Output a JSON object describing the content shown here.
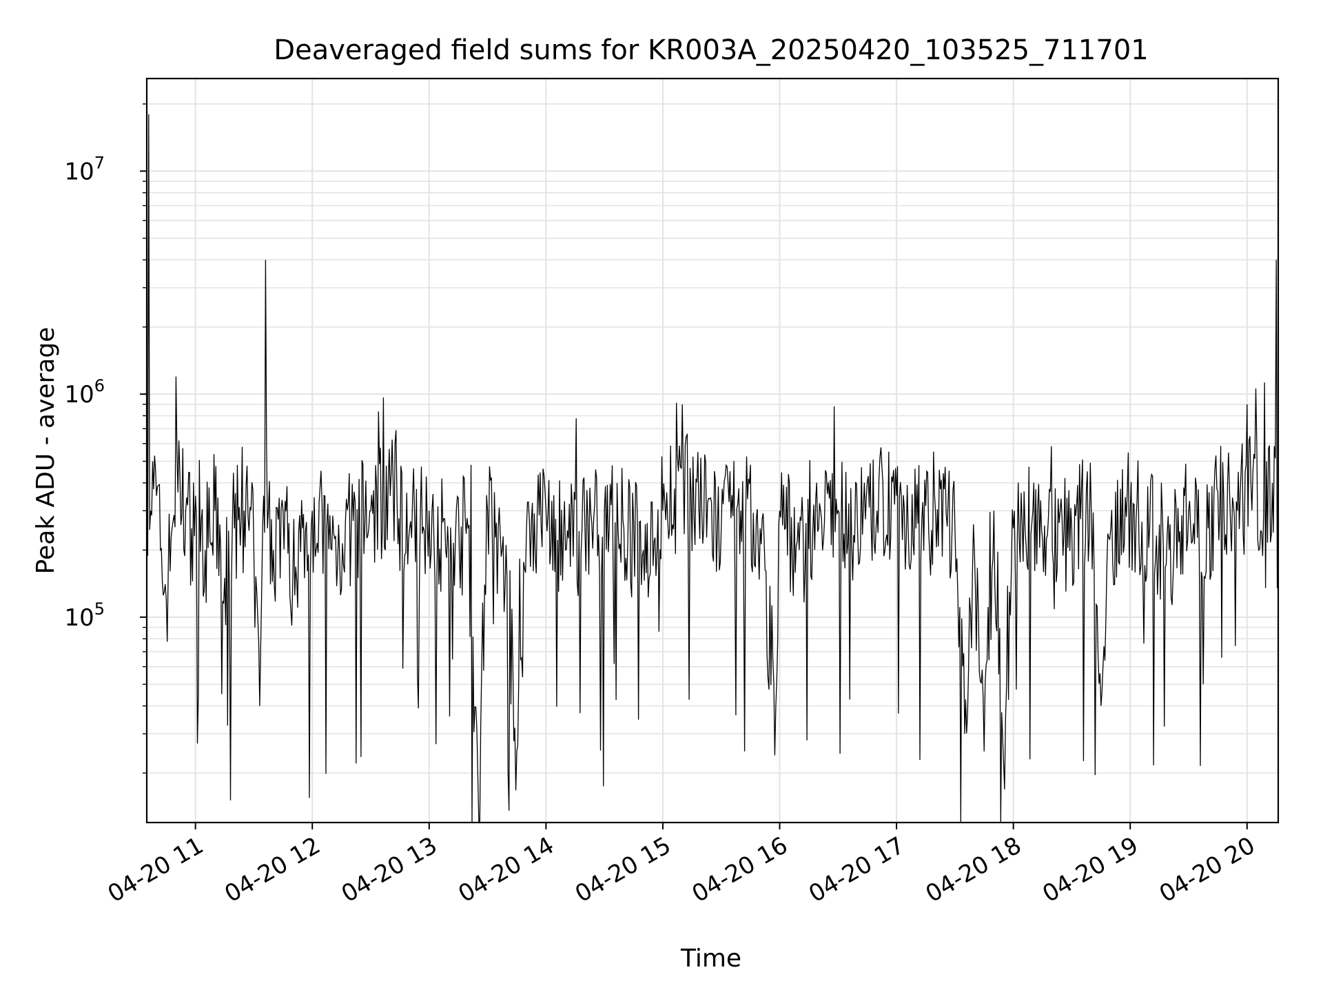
{
  "chart_data": {
    "type": "line",
    "title": "Deaveraged field sums for KR003A_20250420_103525_711701",
    "xlabel": "Time",
    "ylabel": "Peak ADU - average",
    "yscale": "log",
    "grid": true,
    "x_ticks": [
      "04-20 11",
      "04-20 12",
      "04-20 13",
      "04-20 14",
      "04-20 15",
      "04-20 16",
      "04-20 17",
      "04-20 18",
      "04-20 19",
      "04-20 20"
    ],
    "y_ticks": [
      {
        "base": "10",
        "exp": "5",
        "value": 100000
      },
      {
        "base": "10",
        "exp": "6",
        "value": 1000000
      },
      {
        "base": "10",
        "exp": "7",
        "value": 10000000
      }
    ],
    "ylim": [
      12000,
      26000000
    ],
    "xlim": [
      "2025-04-20 10:35",
      "2025-04-20 20:16"
    ],
    "line_color": "#000000",
    "series": [
      {
        "x": [
          "2025-04-20 10:35",
          "2025-04-20 10:36",
          "2025-04-20 10:37",
          "2025-04-20 10:38",
          "2025-04-20 10:40",
          "2025-04-20 10:42",
          "2025-04-20 10:45",
          "2025-04-20 10:48",
          "2025-04-20 10:50",
          "2025-04-20 10:52",
          "2025-04-20 10:55",
          "2025-04-20 10:58",
          "2025-04-20 11:00",
          "2025-04-20 11:05",
          "2025-04-20 11:10",
          "2025-04-20 11:15",
          "2025-04-20 11:20",
          "2025-04-20 11:25",
          "2025-04-20 11:30",
          "2025-04-20 11:33",
          "2025-04-20 11:35",
          "2025-04-20 11:36",
          "2025-04-20 11:37",
          "2025-04-20 11:40",
          "2025-04-20 11:45",
          "2025-04-20 11:50",
          "2025-04-20 11:55",
          "2025-04-20 12:00",
          "2025-04-20 12:10",
          "2025-04-20 12:20",
          "2025-04-20 12:30",
          "2025-04-20 12:40",
          "2025-04-20 12:50",
          "2025-04-20 13:00",
          "2025-04-20 13:10",
          "2025-04-20 13:20",
          "2025-04-20 13:25",
          "2025-04-20 13:30",
          "2025-04-20 13:40",
          "2025-04-20 13:45",
          "2025-04-20 13:50",
          "2025-04-20 14:00",
          "2025-04-20 14:10",
          "2025-04-20 14:20",
          "2025-04-20 14:30",
          "2025-04-20 14:40",
          "2025-04-20 14:50",
          "2025-04-20 15:00",
          "2025-04-20 15:10",
          "2025-04-20 15:20",
          "2025-04-20 15:30",
          "2025-04-20 15:40",
          "2025-04-20 15:50",
          "2025-04-20 15:58",
          "2025-04-20 16:00",
          "2025-04-20 16:10",
          "2025-04-20 16:20",
          "2025-04-20 16:30",
          "2025-04-20 16:40",
          "2025-04-20 16:50",
          "2025-04-20 17:00",
          "2025-04-20 17:10",
          "2025-04-20 17:20",
          "2025-04-20 17:30",
          "2025-04-20 17:35",
          "2025-04-20 17:40",
          "2025-04-20 17:45",
          "2025-04-20 17:50",
          "2025-04-20 17:55",
          "2025-04-20 18:00",
          "2025-04-20 18:10",
          "2025-04-20 18:20",
          "2025-04-20 18:30",
          "2025-04-20 18:40",
          "2025-04-20 18:45",
          "2025-04-20 18:50",
          "2025-04-20 19:00",
          "2025-04-20 19:10",
          "2025-04-20 19:20",
          "2025-04-20 19:30",
          "2025-04-20 19:40",
          "2025-04-20 19:50",
          "2025-04-20 19:55",
          "2025-04-20 20:00",
          "2025-04-20 20:05",
          "2025-04-20 20:10",
          "2025-04-20 20:13",
          "2025-04-20 20:15",
          "2025-04-20 20:16"
        ],
        "y": [
          400000,
          18000000,
          300000,
          500000,
          350000,
          200000,
          120000,
          250000,
          1200000,
          450000,
          300000,
          250000,
          350000,
          200000,
          300000,
          150000,
          250000,
          300000,
          200000,
          40000,
          350000,
          4000000,
          250000,
          200000,
          300000,
          150000,
          250000,
          300000,
          200000,
          250000,
          300000,
          350000,
          250000,
          300000,
          200000,
          250000,
          20000,
          300000,
          150000,
          25000,
          250000,
          300000,
          200000,
          250000,
          300000,
          250000,
          200000,
          300000,
          900000,
          300000,
          250000,
          300000,
          250000,
          40000,
          300000,
          200000,
          250000,
          300000,
          250000,
          300000,
          350000,
          250000,
          300000,
          250000,
          30000,
          200000,
          25000,
          300000,
          22000,
          250000,
          300000,
          200000,
          250000,
          300000,
          40000,
          250000,
          300000,
          250000,
          200000,
          300000,
          250000,
          400000,
          300000,
          900000,
          600000,
          500000,
          400000,
          4000000,
          500000
        ]
      }
    ]
  }
}
